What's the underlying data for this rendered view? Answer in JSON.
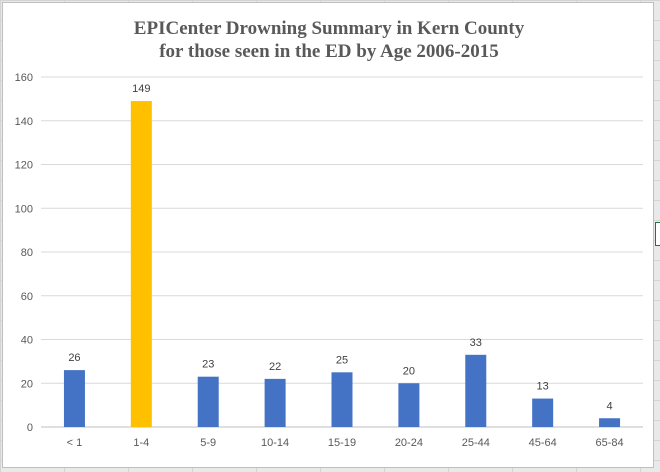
{
  "chart_data": {
    "type": "bar",
    "title_lines": [
      "EPICenter Drowning Summary in Kern County",
      "for those seen in the ED by Age 2006-2015"
    ],
    "categories": [
      "< 1",
      "1-4",
      "5-9",
      "10-14",
      "15-19",
      "20-24",
      "25-44",
      "45-64",
      "65-84"
    ],
    "values": [
      26,
      149,
      23,
      22,
      25,
      20,
      33,
      13,
      4
    ],
    "bar_colors": [
      "#4472c4",
      "#ffc000",
      "#4472c4",
      "#4472c4",
      "#4472c4",
      "#4472c4",
      "#4472c4",
      "#4472c4",
      "#4472c4"
    ],
    "data_labels": [
      "26",
      "149",
      "23",
      "22",
      "25",
      "20",
      "33",
      "13",
      "4"
    ],
    "ylim": [
      0,
      160
    ],
    "yticks": [
      0,
      20,
      40,
      60,
      80,
      100,
      120,
      140,
      160
    ],
    "xlabel": "",
    "ylabel": "",
    "grid": true,
    "legend": "none"
  },
  "colors": {
    "gridline": "#d9d9d9",
    "axis": "#bfbfbf"
  }
}
